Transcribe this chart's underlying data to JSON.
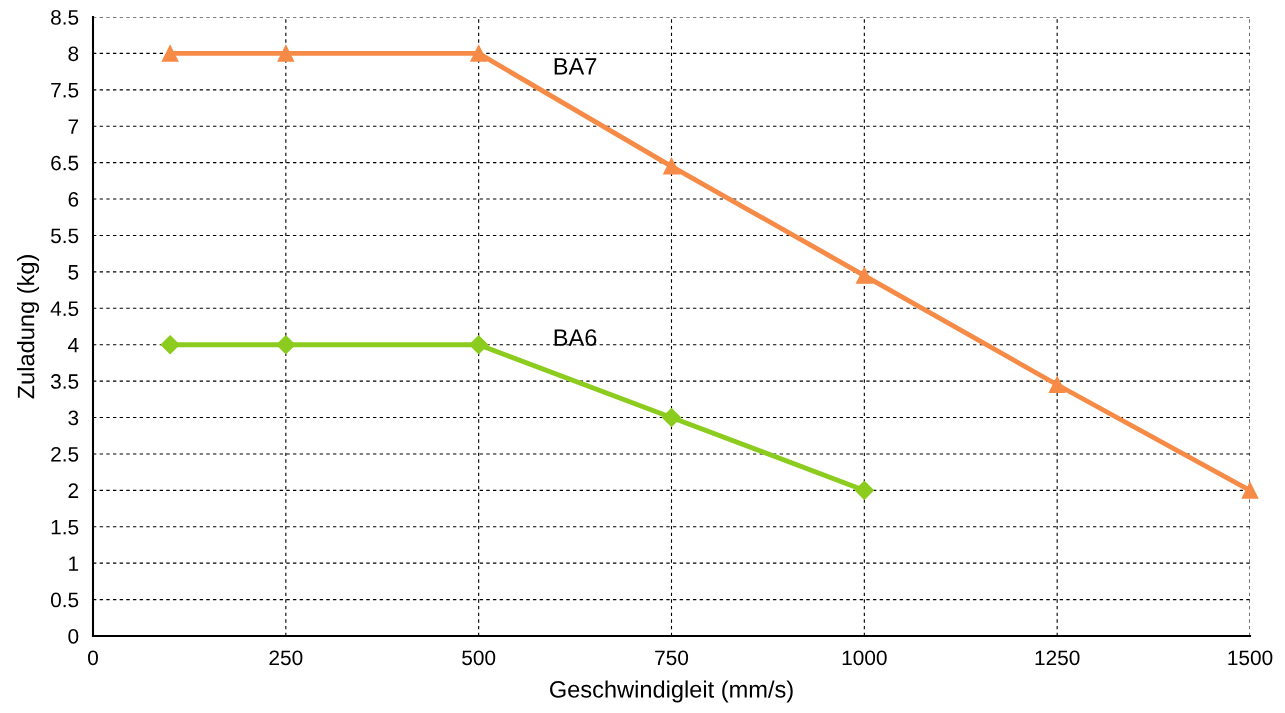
{
  "chart_data": {
    "type": "line",
    "xlabel": "Geschwindigleit (mm/s)",
    "ylabel": "Zuladung (kg)",
    "series": [
      {
        "name": "BA7",
        "color": "#f68b47",
        "marker": "triangle",
        "x": [
          100,
          250,
          500,
          750,
          1000,
          1250,
          1500
        ],
        "values": [
          8,
          8,
          8,
          6.45,
          4.95,
          3.45,
          2
        ]
      },
      {
        "name": "BA6",
        "color": "#8ccc1e",
        "marker": "diamond",
        "x": [
          100,
          250,
          500,
          750,
          1000
        ],
        "values": [
          4,
          4,
          4,
          3,
          2
        ]
      }
    ],
    "xlim": [
      0,
      1500
    ],
    "xticks": [
      0,
      250,
      500,
      750,
      1000,
      1250,
      1500
    ],
    "ylim": [
      0,
      8.5
    ],
    "yticks": [
      0,
      0.5,
      1,
      1.5,
      2,
      2.5,
      3,
      3.5,
      4,
      4.5,
      5,
      5.5,
      6,
      6.5,
      7,
      7.5,
      8,
      8.5
    ],
    "grid": true,
    "line_style": "solid",
    "legend": false
  }
}
